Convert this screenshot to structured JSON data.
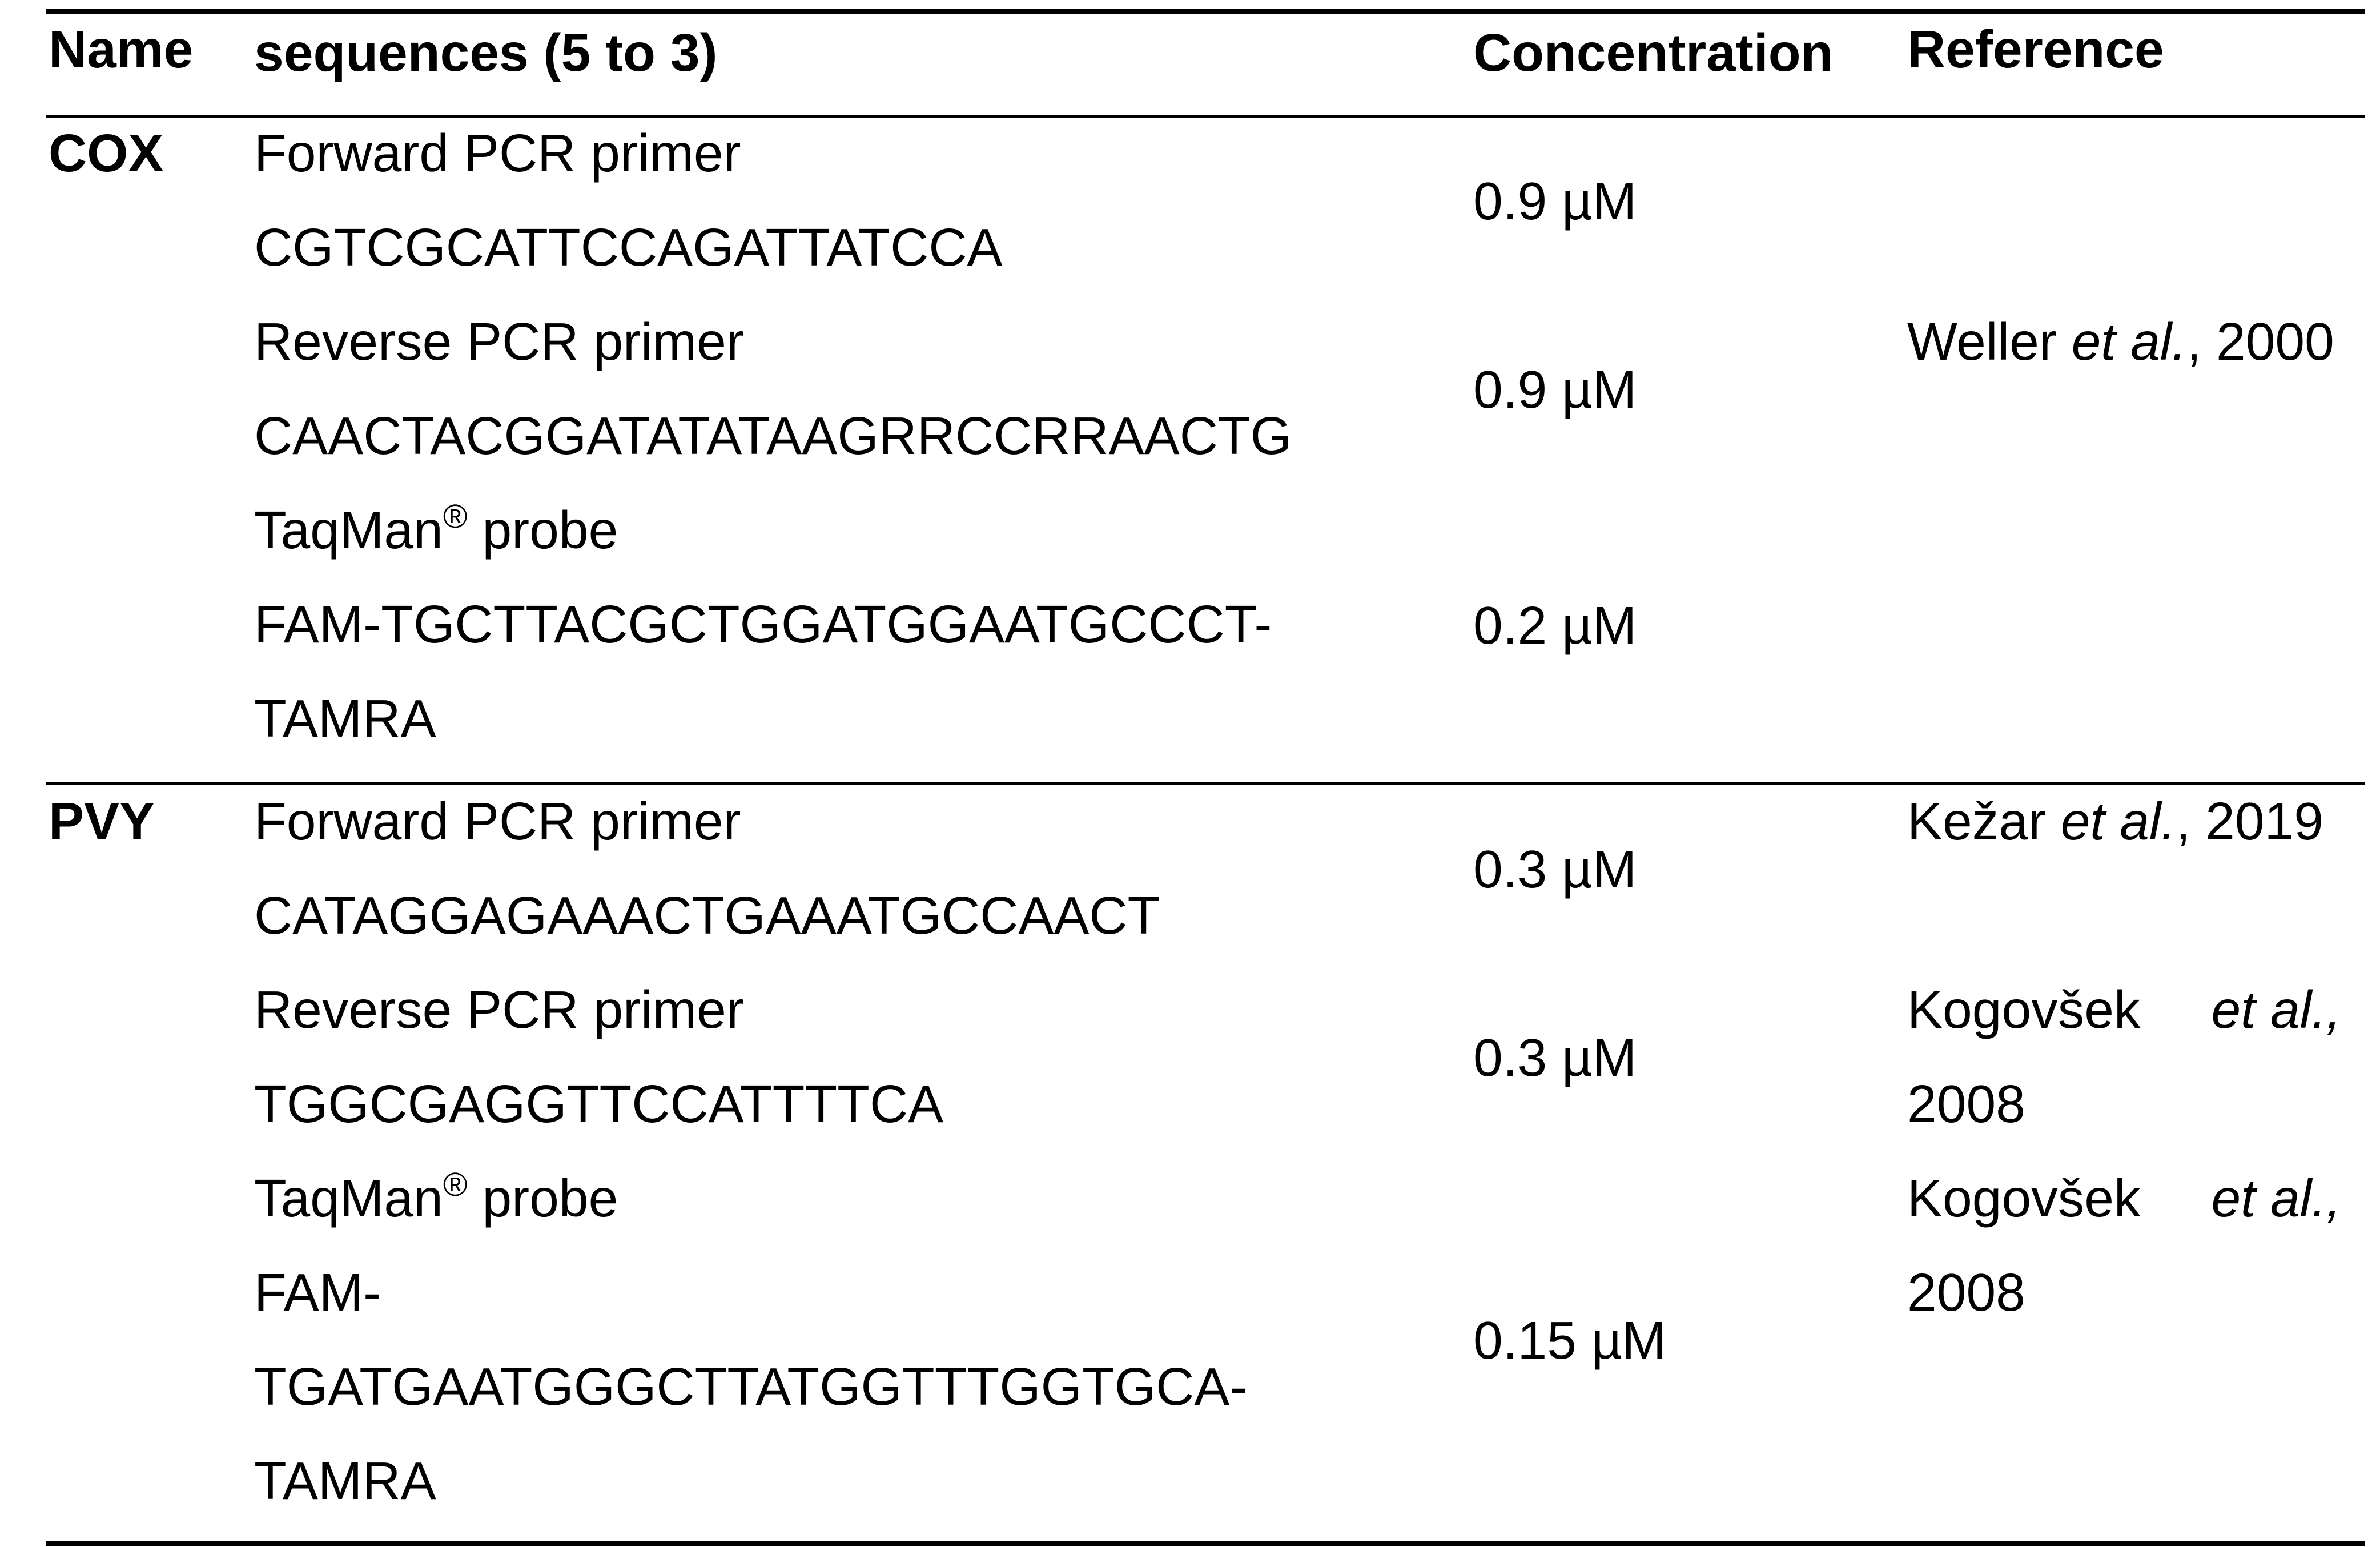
{
  "table": {
    "headers": {
      "name": "Name",
      "sequences": "sequences (5 to 3)",
      "concentration": "Concentration",
      "reference": "Reference"
    },
    "rows": [
      {
        "name": "COX",
        "lines": [
          "Forward PCR primer",
          "CGTCGCATTCCAGATTATCCA",
          "Reverse PCR primer",
          "CAACTACGGATATATAAGRRCCRRAACTG",
          "TaqMan",
          "FAM-TGCTTACGCTGGATGGAATGCCCT-",
          "TAMRA"
        ],
        "probe_suffix": " probe",
        "registered_mark": "®",
        "concentrations": [
          "0.9 µM",
          "0.9 µM",
          "0.2 µM"
        ],
        "references": [
          {
            "author": "Weller ",
            "etal": "et al.",
            "year": ", 2000"
          }
        ]
      },
      {
        "name": "PVY",
        "lines": [
          "Forward PCR primer",
          "CATAGGAGAAACTGAAATGCCAACT",
          "Reverse PCR primer",
          "TGGCGAGGTTCCATTTTCA",
          "TaqMan",
          "FAM-",
          "TGATGAATGGGCTTATGGTTTGGTGCA-",
          "TAMRA"
        ],
        "probe_suffix": " probe",
        "registered_mark": "®",
        "concentrations": [
          "0.3 µM",
          "0.3 µM",
          "0.15 µM"
        ],
        "references": [
          {
            "author": "Kežar ",
            "etal": "et al.",
            "year": ", 2019"
          },
          {
            "author": "Kogovšek",
            "etal": "et al.",
            "year_line2": "2008"
          },
          {
            "author": "Kogovšek",
            "etal": "et al.",
            "year_line2": "2008"
          }
        ]
      }
    ]
  }
}
